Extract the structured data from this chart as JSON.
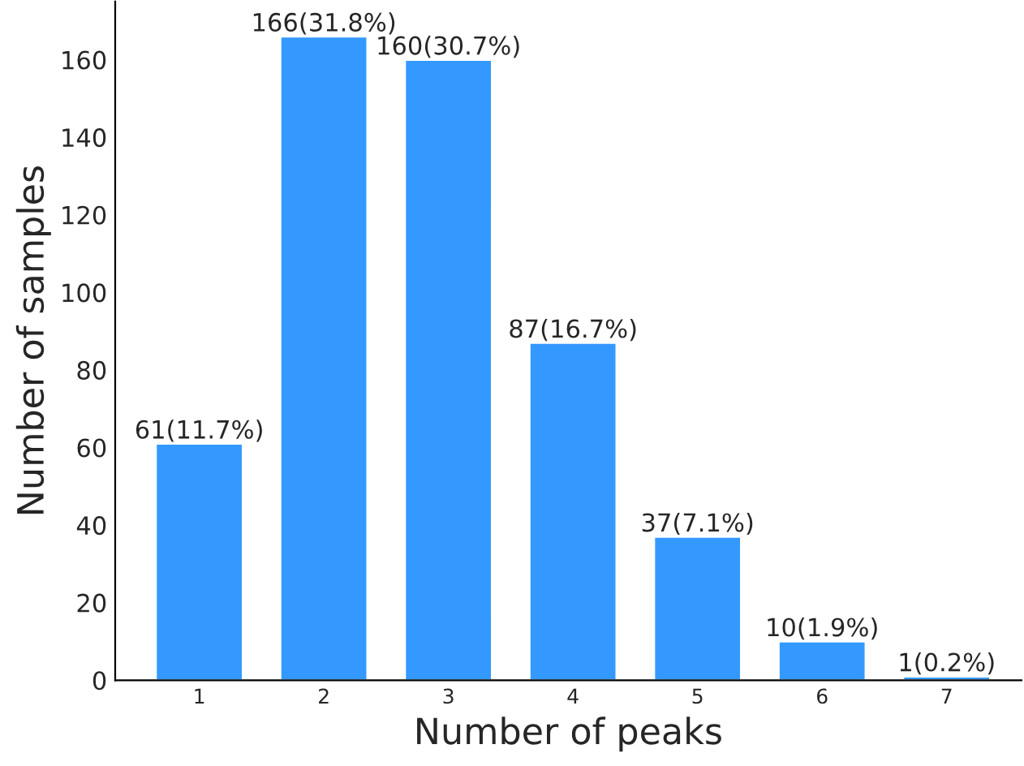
{
  "chart_data": {
    "type": "bar",
    "xlabel": "Number of peaks",
    "ylabel": "Number of samples",
    "categories": [
      "1",
      "2",
      "3",
      "4",
      "5",
      "6",
      "7"
    ],
    "values": [
      61,
      166,
      160,
      87,
      37,
      10,
      1
    ],
    "value_labels": [
      "61(11.7%)",
      "166(31.8%)",
      "160(30.7%)",
      "87(16.7%)",
      "37(7.1%)",
      "10(1.9%)",
      "1(0.2%)"
    ],
    "color": "#3399ff",
    "ylim": [
      0,
      175
    ],
    "yticks": [
      0,
      20,
      40,
      60,
      80,
      100,
      120,
      140,
      160
    ],
    "grid": false,
    "legend": false
  }
}
